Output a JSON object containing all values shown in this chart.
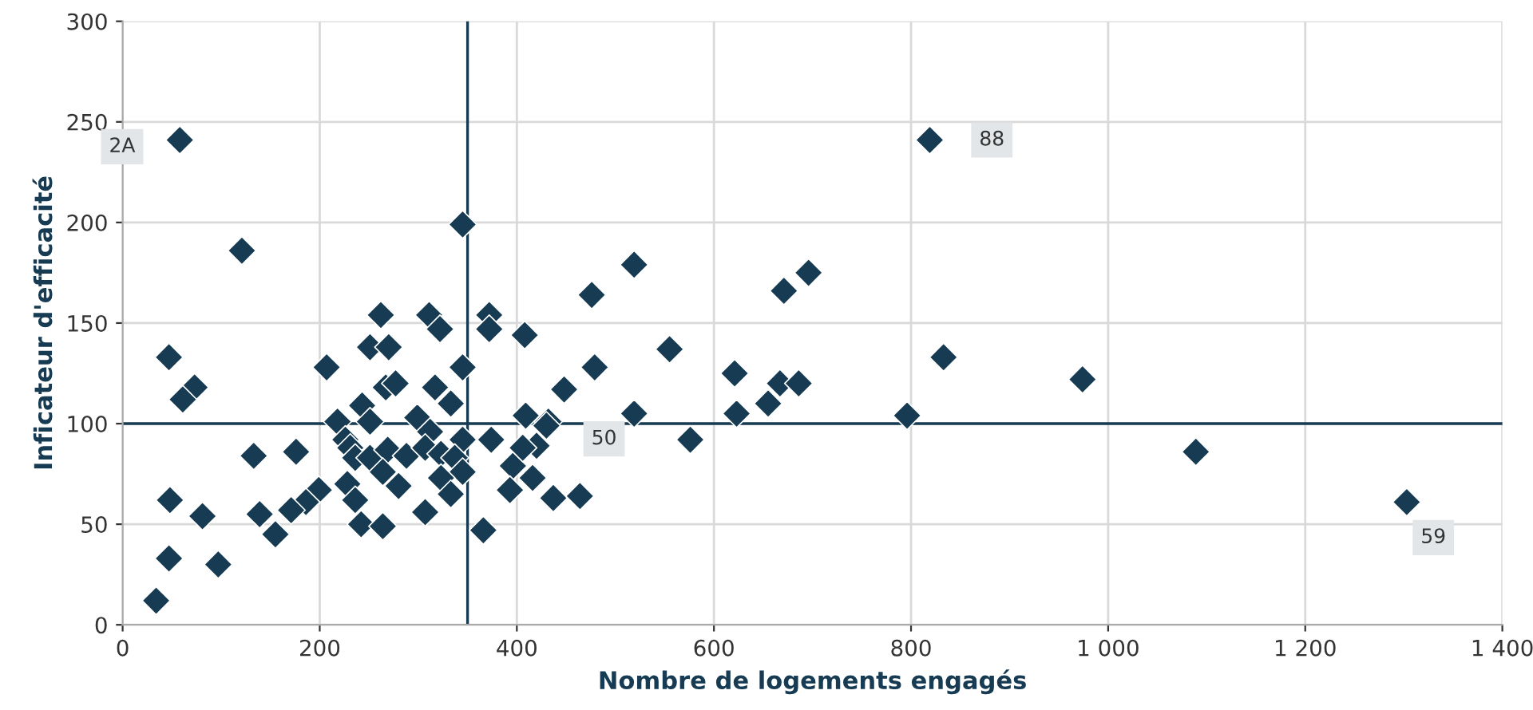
{
  "chart_data": {
    "type": "scatter",
    "xlabel": "Nombre de logements engagés",
    "ylabel": "Inficateur d'efficacité",
    "series": [
      {
        "color": "#163b52",
        "x": [
          58,
          819,
          1303,
          1089,
          345,
          121,
          47,
          73,
          61,
          207,
          218,
          262,
          251,
          270,
          311,
          322,
          345,
          267,
          277,
          317,
          333,
          243,
          251,
          299,
          312,
          345,
          226,
          231,
          236,
          251,
          269,
          288,
          307,
          323,
          337,
          345,
          264,
          323,
          333,
          280,
          228,
          236,
          242,
          264,
          307,
          176,
          133,
          199,
          186,
          171,
          139,
          155,
          48,
          81,
          47,
          97,
          34,
          366,
          372,
          372,
          408,
          476,
          479,
          448,
          409,
          432,
          374,
          396,
          416,
          393,
          437,
          464,
          420,
          406,
          430,
          519,
          555,
          519,
          576,
          621,
          623,
          655,
          667,
          686,
          671,
          696,
          796,
          833,
          974
        ],
        "values": [
          241,
          241,
          61,
          86,
          199,
          186,
          133,
          118,
          112,
          128,
          101,
          154,
          138,
          138,
          154,
          147,
          128,
          118,
          120,
          118,
          110,
          109,
          101,
          103,
          96,
          92,
          92,
          88,
          83,
          83,
          87,
          84,
          88,
          85,
          83,
          76,
          76,
          73,
          65,
          69,
          70,
          62,
          50,
          49,
          56,
          86,
          84,
          67,
          61,
          57,
          55,
          45,
          62,
          54,
          33,
          30,
          12,
          47,
          154,
          147,
          144,
          164,
          128,
          117,
          104,
          101,
          92,
          79,
          73,
          67,
          63,
          64,
          89,
          88,
          99,
          179,
          137,
          105,
          92,
          125,
          105,
          110,
          120,
          120,
          166,
          175,
          104,
          133,
          122
        ]
      }
    ],
    "xlim": [
      0,
      1400
    ],
    "ylim": [
      0,
      300
    ],
    "xticks": [
      0,
      200,
      400,
      600,
      800,
      {
        "value": 1000,
        "label": "1 000"
      },
      {
        "value": 1200,
        "label": "1 200"
      },
      {
        "value": 1400,
        "label": "1 400"
      }
    ],
    "yticks": [
      0,
      50,
      100,
      150,
      200,
      250,
      300
    ],
    "grid": true,
    "marker": "diamond",
    "legend": false,
    "ref_lines": [
      {
        "axis": "x",
        "value": 350,
        "color": "#163b52"
      },
      {
        "axis": "y",
        "value": 100,
        "color": "#163b52"
      }
    ],
    "annotations": [
      {
        "text": "2A",
        "x": 58,
        "y": 241
      },
      {
        "text": "88",
        "x": 819,
        "y": 241
      },
      {
        "text": "50",
        "x": 430,
        "y": 99
      },
      {
        "text": "59",
        "x": 1303,
        "y": 61
      }
    ]
  }
}
